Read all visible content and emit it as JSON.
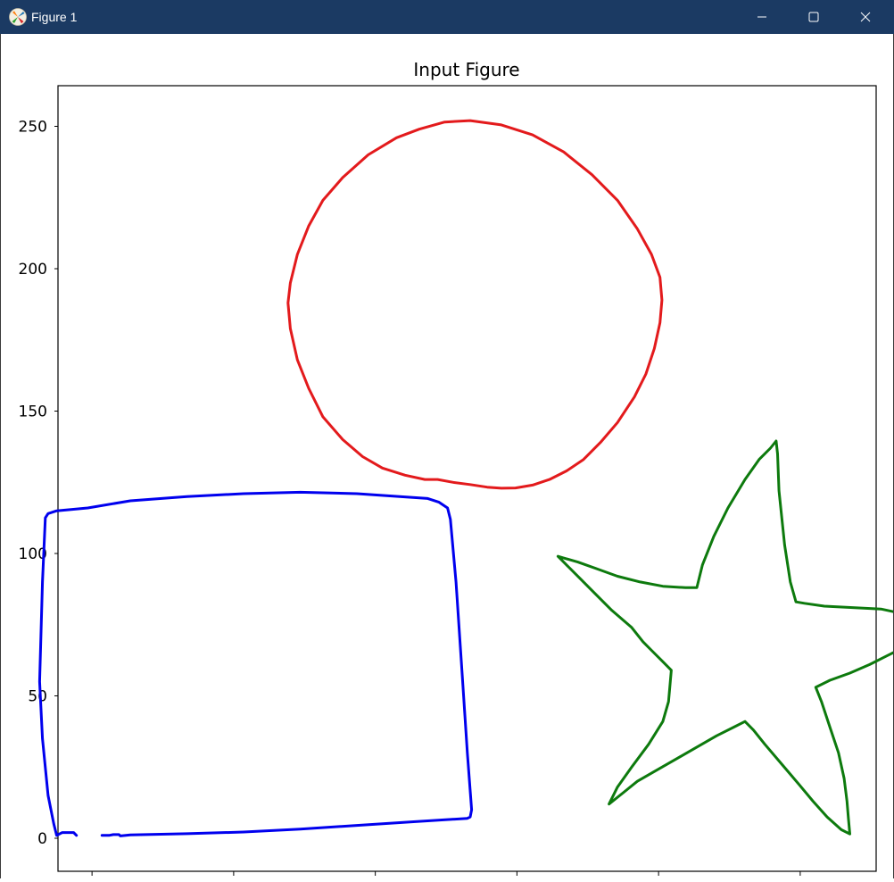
{
  "window": {
    "title": "Figure 1",
    "icon": "matplotlib-icon",
    "controls": [
      "minimize-icon",
      "maximize-icon",
      "close-icon"
    ]
  },
  "chart_data": {
    "type": "line",
    "title": "Input Figure",
    "xlabel": "",
    "ylabel": "",
    "ylim": [
      -11,
      265
    ],
    "yticks": [
      0,
      50,
      100,
      150,
      200,
      250
    ],
    "xticks_labels_visible": false,
    "grid": false,
    "series": [
      {
        "color": "#e31a1c",
        "points": [
          [
            -11.5,
            126
          ],
          [
            -6,
            125
          ],
          [
            0,
            124.2
          ],
          [
            6,
            123.3
          ],
          [
            11,
            122.9
          ],
          [
            16,
            123
          ],
          [
            22,
            124
          ],
          [
            28,
            126
          ],
          [
            34,
            129
          ],
          [
            40,
            133
          ],
          [
            46,
            139
          ],
          [
            52,
            146
          ],
          [
            58,
            155
          ],
          [
            62,
            163
          ],
          [
            65,
            172
          ],
          [
            67,
            181
          ],
          [
            67.7,
            189
          ],
          [
            67,
            197
          ],
          [
            64,
            205
          ],
          [
            59,
            214
          ],
          [
            52,
            224
          ],
          [
            43,
            233
          ],
          [
            33,
            241
          ],
          [
            22,
            247
          ],
          [
            11,
            250.5
          ],
          [
            0,
            252
          ],
          [
            -9,
            251.5
          ],
          [
            -18,
            249
          ],
          [
            -26,
            246
          ],
          [
            -36,
            240
          ],
          [
            -45,
            232
          ],
          [
            -52,
            224
          ],
          [
            -57,
            215
          ],
          [
            -61,
            205
          ],
          [
            -63.5,
            195
          ],
          [
            -64.3,
            188
          ],
          [
            -63.5,
            179
          ],
          [
            -61,
            168
          ],
          [
            -57,
            158
          ],
          [
            -52,
            148
          ],
          [
            -45,
            140
          ],
          [
            -38,
            134
          ],
          [
            -31,
            130
          ],
          [
            -23,
            127.5
          ],
          [
            -16,
            126
          ],
          [
            -11.5,
            126
          ]
        ]
      },
      {
        "color": "#0000ee",
        "points": [
          [
            -130,
            1
          ],
          [
            -127.5,
            1
          ],
          [
            -126,
            1.3
          ],
          [
            -124,
            1.3
          ],
          [
            -123.5,
            0.8
          ],
          [
            -120,
            1.2
          ],
          [
            -100,
            1.6
          ],
          [
            -80,
            2.2
          ],
          [
            -60,
            3.2
          ],
          [
            -40,
            4.5
          ],
          [
            -20,
            5.8
          ],
          [
            -1,
            7
          ],
          [
            0,
            7.5
          ],
          [
            0.5,
            10
          ],
          [
            -1,
            30
          ],
          [
            -3,
            60
          ],
          [
            -5,
            90
          ],
          [
            -7,
            112
          ],
          [
            -8,
            116
          ],
          [
            -11,
            118
          ],
          [
            -15,
            119.3
          ],
          [
            -40,
            121
          ],
          [
            -60,
            121.5
          ],
          [
            -80,
            121
          ],
          [
            -100,
            120
          ],
          [
            -120,
            118.5
          ],
          [
            -135,
            116
          ],
          [
            -146,
            115
          ],
          [
            -149,
            114
          ],
          [
            -150,
            112.5
          ],
          [
            -151,
            90
          ],
          [
            -152,
            55
          ],
          [
            -151,
            35
          ],
          [
            -149,
            15
          ],
          [
            -147,
            5
          ],
          [
            -146,
            1
          ],
          [
            -144,
            2
          ],
          [
            -140,
            2
          ],
          [
            -139,
            1
          ]
        ]
      },
      {
        "color": "#0d7a0d",
        "points": [
          [
            31,
            99
          ],
          [
            38,
            97
          ],
          [
            45,
            94.5
          ],
          [
            52,
            92
          ],
          [
            60,
            90
          ],
          [
            68,
            88.5
          ],
          [
            76,
            88
          ],
          [
            80,
            88
          ],
          [
            82,
            96
          ],
          [
            86,
            106
          ],
          [
            91,
            116
          ],
          [
            97,
            126
          ],
          [
            102,
            133
          ],
          [
            106,
            137
          ],
          [
            108,
            139.5
          ],
          [
            108.5,
            135
          ],
          [
            109,
            122
          ],
          [
            111,
            103
          ],
          [
            113,
            90
          ],
          [
            115,
            83
          ],
          [
            118,
            82.5
          ],
          [
            125,
            81.5
          ],
          [
            135,
            81
          ],
          [
            145,
            80.5
          ],
          [
            152,
            79
          ],
          [
            159,
            77
          ],
          [
            164,
            75
          ],
          [
            168,
            73
          ],
          [
            167,
            72.3
          ],
          [
            162,
            70.5
          ],
          [
            153,
            67
          ],
          [
            147,
            64
          ],
          [
            141,
            61
          ],
          [
            134,
            58
          ],
          [
            127,
            55.5
          ],
          [
            122,
            53
          ],
          [
            124,
            48
          ],
          [
            127,
            39
          ],
          [
            130,
            30
          ],
          [
            132,
            21
          ],
          [
            133,
            13
          ],
          [
            133.5,
            7
          ],
          [
            134,
            1.5
          ],
          [
            131,
            3
          ],
          [
            126,
            7.5
          ],
          [
            121,
            13
          ],
          [
            116,
            19
          ],
          [
            110,
            26
          ],
          [
            104,
            33
          ],
          [
            100,
            38
          ],
          [
            97,
            41
          ],
          [
            93,
            39
          ],
          [
            87,
            36
          ],
          [
            80,
            32
          ],
          [
            73,
            28
          ],
          [
            66,
            24
          ],
          [
            59,
            20
          ],
          [
            54,
            16
          ],
          [
            49,
            12
          ],
          [
            52,
            18
          ],
          [
            57,
            25
          ],
          [
            63,
            33
          ],
          [
            68,
            41
          ],
          [
            70,
            48
          ],
          [
            71,
            59
          ],
          [
            68,
            62
          ],
          [
            64,
            66
          ],
          [
            61,
            69
          ],
          [
            57,
            74
          ],
          [
            50,
            80
          ],
          [
            44,
            86
          ],
          [
            39,
            91
          ],
          [
            35,
            95
          ],
          [
            31,
            99
          ]
        ]
      }
    ]
  }
}
